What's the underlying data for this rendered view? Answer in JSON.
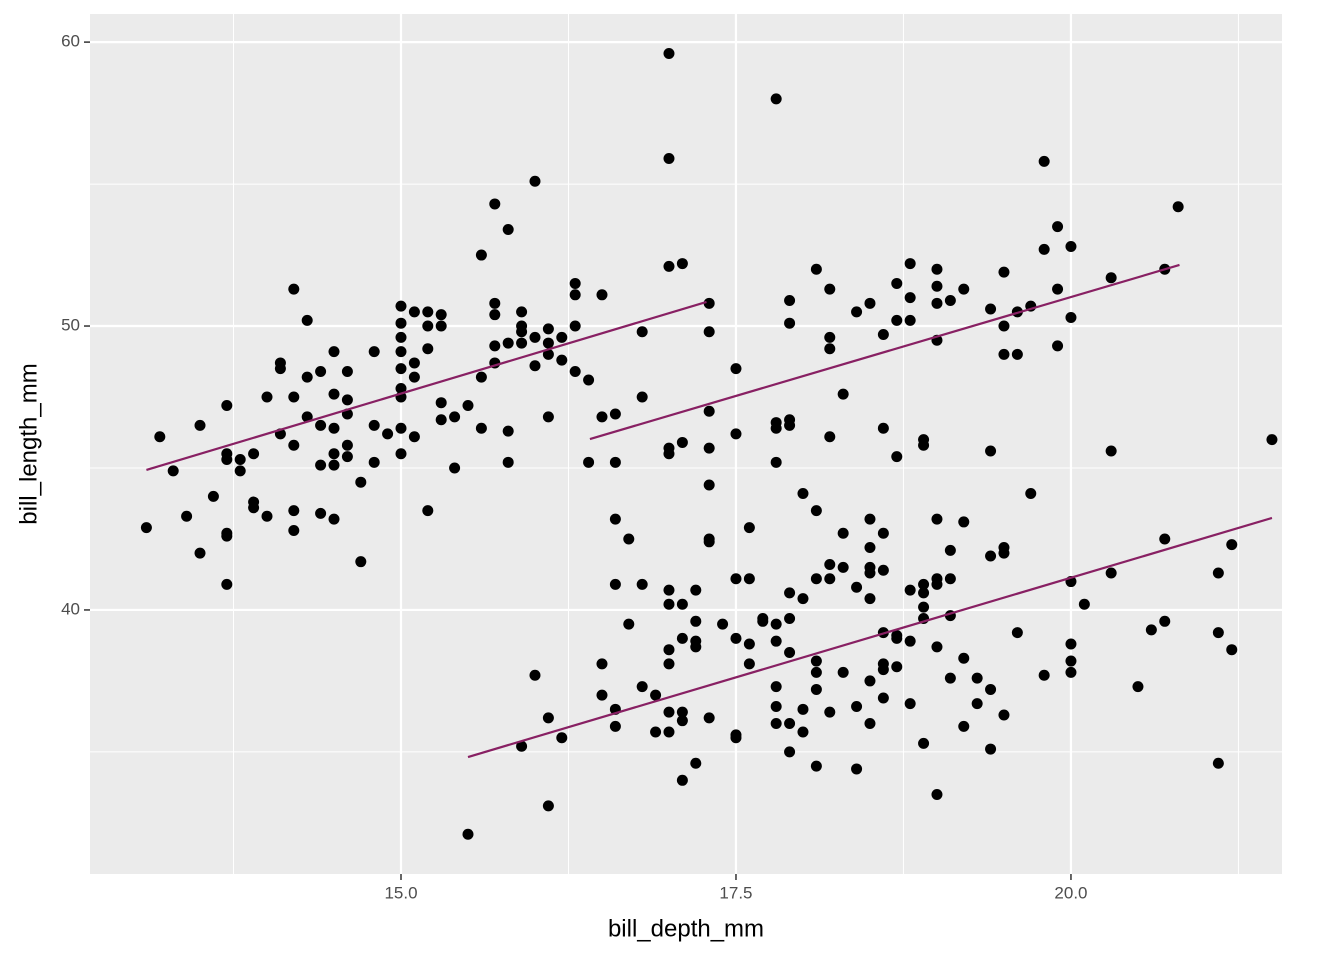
{
  "chart_data": {
    "type": "scatter",
    "x_label": "bill_depth_mm",
    "y_label": "bill_length_mm",
    "xlim": [
      12.679,
      21.575
    ],
    "ylim": [
      30.7,
      60.99
    ],
    "xticks": [
      {
        "value": 15,
        "label": "15.0"
      },
      {
        "value": 17.5,
        "label": "17.5"
      },
      {
        "value": 20,
        "label": "20.0"
      }
    ],
    "yticks": [
      40,
      50,
      60
    ],
    "x_minor_grid": [
      13.75,
      16.25,
      18.75,
      21.25
    ],
    "y_minor_grid": [
      35,
      45,
      55
    ],
    "grid": true,
    "point_color": "#000000",
    "line_color": "#882063",
    "x": [
      13.1,
      13.2,
      13.3,
      13.4,
      13.5,
      13.5,
      13.6,
      13.7,
      13.7,
      13.7,
      13.7,
      13.7,
      13.7,
      13.8,
      13.8,
      13.9,
      13.9,
      13.9,
      14.0,
      14.0,
      14.1,
      14.1,
      14.1,
      14.2,
      14.2,
      14.2,
      14.2,
      14.2,
      14.3,
      14.3,
      14.3,
      14.4,
      14.4,
      14.4,
      14.4,
      14.5,
      14.5,
      14.5,
      14.5,
      14.5,
      14.5,
      14.6,
      14.6,
      14.6,
      14.6,
      14.6,
      14.7,
      14.7,
      14.8,
      14.8,
      14.8,
      14.9,
      15.0,
      15.0,
      15.0,
      15.0,
      15.0,
      15.0,
      15.0,
      15.0,
      15.0,
      15.1,
      15.1,
      15.1,
      15.1,
      15.2,
      15.2,
      15.2,
      15.2,
      15.3,
      15.3,
      15.3,
      15.3,
      15.4,
      15.4,
      15.5,
      15.6,
      15.6,
      15.6,
      15.7,
      15.7,
      15.7,
      15.7,
      15.7,
      15.8,
      15.8,
      15.8,
      15.8,
      15.9,
      15.9,
      15.9,
      15.9,
      16.0,
      16.0,
      16.0,
      16.1,
      16.1,
      16.1,
      16.1,
      16.2,
      16.2,
      16.3,
      16.3,
      16.3,
      16.3,
      16.4,
      16.4,
      16.5,
      16.5,
      16.6,
      16.6,
      16.8,
      16.8,
      17.0,
      17.0,
      17.0,
      17.0,
      17.0,
      17.1,
      17.1,
      17.3,
      17.3,
      17.3,
      17.3,
      17.5,
      17.5,
      17.8,
      17.8,
      17.8,
      17.8,
      17.9,
      17.9,
      17.9,
      17.9,
      18.1,
      18.2,
      18.2,
      18.2,
      18.2,
      18.3,
      18.4,
      18.5,
      18.6,
      18.6,
      18.7,
      18.7,
      18.7,
      18.8,
      18.8,
      18.8,
      18.9,
      18.9,
      19.0,
      19.0,
      19.0,
      19.0,
      19.1,
      19.2,
      19.4,
      19.4,
      19.5,
      19.5,
      19.5,
      19.6,
      19.6,
      19.7,
      19.7,
      19.8,
      19.8,
      19.9,
      19.9,
      19.9,
      20.0,
      20.0,
      20.3,
      20.3,
      20.7,
      20.8,
      21.5,
      15.5,
      15.9,
      16.0,
      16.1,
      16.1,
      16.2,
      16.5,
      16.5,
      16.6,
      16.6,
      16.6,
      16.6,
      16.7,
      16.7,
      16.8,
      16.8,
      16.9,
      16.9,
      17.0,
      17.0,
      17.0,
      17.0,
      17.0,
      17.0,
      17.1,
      17.1,
      17.1,
      17.1,
      17.1,
      17.2,
      17.2,
      17.2,
      17.2,
      17.2,
      17.3,
      17.3,
      17.3,
      17.3,
      17.4,
      17.5,
      17.5,
      17.5,
      17.5,
      17.6,
      17.6,
      17.6,
      17.6,
      17.7,
      17.7,
      17.8,
      17.8,
      17.8,
      17.8,
      17.8,
      17.9,
      17.9,
      17.9,
      17.9,
      17.9,
      18.0,
      18.0,
      18.0,
      18.0,
      18.1,
      18.1,
      18.1,
      18.1,
      18.1,
      18.1,
      18.2,
      18.2,
      18.2,
      18.3,
      18.3,
      18.3,
      18.4,
      18.4,
      18.4,
      18.5,
      18.5,
      18.5,
      18.5,
      18.5,
      18.5,
      18.5,
      18.6,
      18.6,
      18.6,
      18.6,
      18.6,
      18.6,
      18.7,
      18.7,
      18.7,
      18.8,
      18.8,
      18.8,
      18.9,
      18.9,
      18.9,
      18.9,
      18.9,
      19.0,
      19.0,
      19.0,
      19.0,
      19.0,
      19.1,
      19.1,
      19.1,
      19.1,
      19.2,
      19.2,
      19.2,
      19.3,
      19.3,
      19.4,
      19.4,
      19.4,
      19.5,
      19.5,
      19.5,
      19.6,
      19.8,
      20.0,
      20.0,
      20.0,
      20.0,
      20.1,
      20.3,
      20.5,
      20.6,
      20.7,
      20.7,
      21.1,
      21.1,
      21.1,
      21.2,
      21.2
    ],
    "y": [
      42.9,
      46.1,
      44.9,
      43.3,
      46.5,
      42.0,
      44.0,
      47.2,
      45.5,
      45.3,
      42.7,
      42.6,
      40.9,
      45.3,
      44.9,
      45.5,
      43.8,
      43.6,
      47.5,
      43.3,
      48.7,
      48.5,
      46.2,
      51.3,
      47.5,
      45.8,
      43.5,
      42.8,
      50.2,
      48.2,
      46.8,
      48.4,
      46.5,
      45.1,
      43.4,
      49.1,
      47.6,
      46.4,
      45.5,
      45.1,
      43.2,
      48.4,
      47.4,
      46.9,
      45.8,
      45.4,
      44.5,
      41.7,
      49.1,
      46.5,
      45.2,
      46.2,
      50.7,
      50.1,
      49.6,
      49.1,
      48.5,
      47.8,
      47.5,
      46.4,
      45.5,
      50.5,
      48.7,
      48.2,
      46.1,
      50.5,
      50.0,
      49.2,
      43.5,
      50.4,
      50.0,
      47.3,
      46.7,
      46.8,
      45.0,
      47.2,
      52.5,
      48.2,
      46.4,
      54.3,
      50.8,
      50.4,
      49.3,
      48.7,
      53.4,
      49.4,
      46.3,
      45.2,
      50.5,
      50.0,
      49.8,
      49.4,
      55.1,
      49.6,
      48.6,
      49.9,
      49.4,
      49.0,
      46.8,
      49.6,
      48.8,
      51.5,
      51.1,
      50.0,
      48.4,
      48.1,
      45.2,
      51.1,
      46.8,
      46.9,
      45.2,
      49.8,
      47.5,
      59.6,
      55.9,
      52.1,
      45.7,
      45.5,
      52.2,
      45.9,
      50.8,
      49.8,
      47.0,
      45.7,
      48.5,
      46.2,
      58.0,
      46.6,
      46.4,
      45.2,
      50.9,
      50.1,
      46.7,
      46.5,
      52.0,
      51.3,
      49.6,
      49.2,
      46.1,
      47.6,
      50.5,
      50.8,
      49.7,
      46.4,
      51.5,
      50.2,
      45.4,
      52.2,
      51.0,
      50.2,
      46.0,
      45.8,
      52.0,
      51.4,
      50.8,
      49.5,
      50.9,
      51.3,
      50.6,
      45.6,
      51.9,
      50.0,
      49.0,
      50.5,
      49.0,
      50.7,
      44.1,
      55.8,
      52.7,
      53.5,
      51.3,
      49.3,
      52.8,
      50.3,
      51.7,
      45.6,
      52.0,
      54.2,
      46.0,
      32.1,
      35.2,
      37.7,
      36.2,
      33.1,
      35.5,
      38.1,
      37.0,
      43.2,
      40.9,
      36.5,
      35.9,
      42.5,
      39.5,
      40.9,
      37.3,
      37.0,
      35.7,
      40.7,
      40.2,
      38.6,
      38.1,
      36.4,
      35.7,
      40.2,
      39.0,
      36.4,
      36.1,
      34.0,
      40.7,
      39.6,
      38.9,
      38.7,
      34.6,
      44.4,
      42.5,
      42.4,
      36.2,
      39.5,
      41.1,
      39.0,
      35.6,
      35.5,
      42.9,
      41.1,
      38.8,
      38.1,
      39.6,
      39.7,
      39.5,
      37.3,
      36.6,
      36.0,
      38.9,
      40.6,
      39.7,
      38.5,
      36.0,
      35.0,
      44.1,
      40.4,
      36.5,
      35.7,
      43.5,
      41.1,
      38.2,
      37.8,
      37.2,
      34.5,
      41.6,
      41.1,
      36.4,
      42.7,
      41.5,
      37.8,
      40.8,
      36.6,
      34.4,
      43.2,
      42.2,
      41.5,
      41.3,
      40.4,
      37.5,
      36.0,
      42.7,
      41.4,
      39.2,
      38.1,
      37.9,
      36.9,
      39.1,
      39.0,
      38.0,
      40.7,
      38.9,
      36.7,
      40.9,
      40.6,
      40.1,
      39.7,
      35.3,
      43.2,
      40.9,
      41.1,
      38.7,
      33.5,
      42.1,
      41.1,
      39.8,
      37.6,
      43.1,
      38.3,
      35.9,
      37.6,
      36.7,
      41.9,
      37.2,
      35.1,
      42.2,
      42.0,
      36.3,
      39.2,
      37.7,
      41.0,
      38.8,
      38.2,
      37.8,
      40.2,
      41.3,
      37.3,
      39.3,
      42.5,
      39.6,
      41.3,
      39.2,
      34.6,
      42.3,
      38.6
    ],
    "fit_lines": [
      {
        "x": [
          13.1,
          17.28
        ],
        "y": [
          44.93,
          50.85
        ]
      },
      {
        "x": [
          16.41,
          20.81
        ],
        "y": [
          46.02,
          52.15
        ]
      },
      {
        "x": [
          15.5,
          21.5
        ],
        "y": [
          34.82,
          43.24
        ]
      }
    ]
  }
}
